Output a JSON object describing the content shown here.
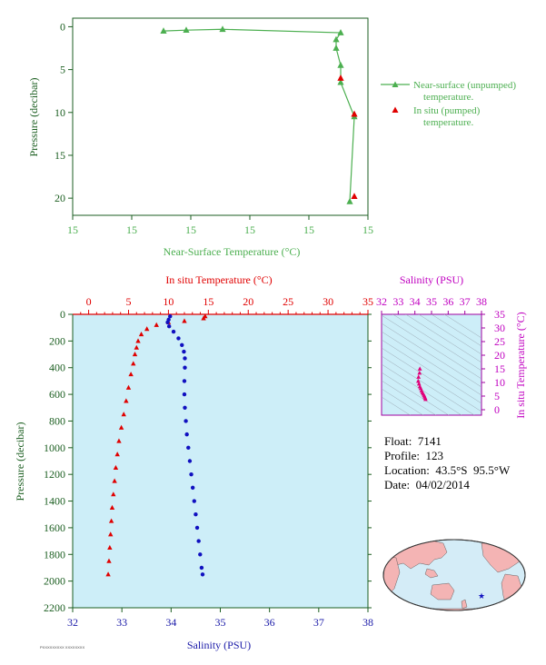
{
  "chart_data": [
    {
      "type": "line",
      "xlabel": "Near-Surface Temperature (°C)",
      "ylabel": "Pressure (decibar)",
      "xtick_labels": [
        "15",
        "15",
        "15",
        "15",
        "15",
        "15"
      ],
      "yticks": [
        0,
        5,
        10,
        15,
        20
      ],
      "ylim": [
        22,
        -1
      ],
      "legend_placement": "right",
      "series": [
        {
          "name": "Near-surface (unpumped) temperature.",
          "color": "#4caf50",
          "marker": "triangle",
          "points": [
            {
              "x": 14.7,
              "p": 0.5
            },
            {
              "x": 14.75,
              "p": 0.4
            },
            {
              "x": 14.83,
              "p": 0.3
            },
            {
              "x": 15.09,
              "p": 0.7
            },
            {
              "x": 15.08,
              "p": 1.5
            },
            {
              "x": 15.08,
              "p": 2.5
            },
            {
              "x": 15.09,
              "p": 4.5
            },
            {
              "x": 15.09,
              "p": 6.5
            },
            {
              "x": 15.12,
              "p": 10.5
            },
            {
              "x": 15.11,
              "p": 20.4
            }
          ]
        },
        {
          "name": "In situ (pumped) temperature.",
          "color": "#e00000",
          "marker": "triangle",
          "points": [
            {
              "x": 15.09,
              "p": 6.0
            },
            {
              "x": 15.12,
              "p": 10.2
            },
            {
              "x": 15.12,
              "p": 19.8
            }
          ]
        }
      ],
      "legend": [
        "Near-surface (unpumped)",
        "temperature.",
        "In situ (pumped)",
        "temperature."
      ]
    },
    {
      "type": "line",
      "ylabel": "Pressure (decibar)",
      "yticks": [
        0,
        200,
        400,
        600,
        800,
        1000,
        1200,
        1400,
        1600,
        1800,
        2000,
        2200
      ],
      "ylim": [
        2200,
        0
      ],
      "x_top": {
        "label": "In situ Temperature (°C)",
        "ticks": [
          0,
          5,
          10,
          15,
          20,
          25,
          30,
          35
        ],
        "range": [
          -2,
          35
        ],
        "color": "#e00000"
      },
      "x_bottom": {
        "label": "Salinity (PSU)",
        "ticks": [
          32,
          33,
          34,
          35,
          36,
          37,
          38
        ],
        "range": [
          32,
          38
        ],
        "color": "#1a1aa8"
      },
      "background": "#cdeef8",
      "series": [
        {
          "name": "temperature",
          "color": "#e00000",
          "marker": "triangle",
          "points": [
            {
              "x": 14.6,
              "p": 15
            },
            {
              "x": 14.4,
              "p": 30
            },
            {
              "x": 12.0,
              "p": 50
            },
            {
              "x": 10.0,
              "p": 60
            },
            {
              "x": 8.5,
              "p": 80
            },
            {
              "x": 7.3,
              "p": 110
            },
            {
              "x": 6.6,
              "p": 150
            },
            {
              "x": 6.2,
              "p": 200
            },
            {
              "x": 6.0,
              "p": 250
            },
            {
              "x": 5.8,
              "p": 300
            },
            {
              "x": 5.6,
              "p": 370
            },
            {
              "x": 5.3,
              "p": 450
            },
            {
              "x": 5.0,
              "p": 550
            },
            {
              "x": 4.7,
              "p": 650
            },
            {
              "x": 4.4,
              "p": 750
            },
            {
              "x": 4.1,
              "p": 850
            },
            {
              "x": 3.8,
              "p": 950
            },
            {
              "x": 3.6,
              "p": 1050
            },
            {
              "x": 3.4,
              "p": 1150
            },
            {
              "x": 3.25,
              "p": 1250
            },
            {
              "x": 3.1,
              "p": 1350
            },
            {
              "x": 2.95,
              "p": 1450
            },
            {
              "x": 2.85,
              "p": 1550
            },
            {
              "x": 2.75,
              "p": 1650
            },
            {
              "x": 2.65,
              "p": 1750
            },
            {
              "x": 2.55,
              "p": 1850
            },
            {
              "x": 2.45,
              "p": 1950
            }
          ]
        },
        {
          "name": "salinity",
          "color": "#1010c0",
          "marker": "circle",
          "points": [
            {
              "x": 33.98,
              "p": 15
            },
            {
              "x": 33.95,
              "p": 40
            },
            {
              "x": 33.93,
              "p": 60
            },
            {
              "x": 33.96,
              "p": 90
            },
            {
              "x": 34.05,
              "p": 130
            },
            {
              "x": 34.15,
              "p": 180
            },
            {
              "x": 34.22,
              "p": 230
            },
            {
              "x": 34.26,
              "p": 280
            },
            {
              "x": 34.28,
              "p": 330
            },
            {
              "x": 34.28,
              "p": 400
            },
            {
              "x": 34.27,
              "p": 500
            },
            {
              "x": 34.27,
              "p": 600
            },
            {
              "x": 34.28,
              "p": 700
            },
            {
              "x": 34.3,
              "p": 800
            },
            {
              "x": 34.32,
              "p": 900
            },
            {
              "x": 34.35,
              "p": 1000
            },
            {
              "x": 34.38,
              "p": 1100
            },
            {
              "x": 34.41,
              "p": 1200
            },
            {
              "x": 34.44,
              "p": 1300
            },
            {
              "x": 34.47,
              "p": 1400
            },
            {
              "x": 34.5,
              "p": 1500
            },
            {
              "x": 34.53,
              "p": 1600
            },
            {
              "x": 34.56,
              "p": 1700
            },
            {
              "x": 34.59,
              "p": 1800
            },
            {
              "x": 34.62,
              "p": 1900
            },
            {
              "x": 34.64,
              "p": 1950
            }
          ]
        }
      ]
    },
    {
      "type": "scatter",
      "title": "Salinity (PSU)",
      "ylabel": "In situ Temperature (°C)",
      "xticks": [
        32,
        33,
        34,
        35,
        36,
        37,
        38
      ],
      "yticks": [
        0,
        5,
        10,
        15,
        20,
        25,
        30,
        35
      ],
      "xlim": [
        32,
        38
      ],
      "ylim": [
        -2,
        35
      ],
      "color": "#e0007a",
      "points": [
        {
          "s": 34.3,
          "t": 15.0
        },
        {
          "s": 34.28,
          "t": 13.5
        },
        {
          "s": 34.22,
          "t": 12.0
        },
        {
          "s": 34.2,
          "t": 10.5
        },
        {
          "s": 34.25,
          "t": 9.5
        },
        {
          "s": 34.3,
          "t": 8.5
        },
        {
          "s": 34.35,
          "t": 7.8
        },
        {
          "s": 34.4,
          "t": 7.0
        },
        {
          "s": 34.45,
          "t": 6.3
        },
        {
          "s": 34.5,
          "t": 5.8
        },
        {
          "s": 34.55,
          "t": 5.3
        },
        {
          "s": 34.58,
          "t": 4.8
        },
        {
          "s": 34.62,
          "t": 4.3
        },
        {
          "s": 34.64,
          "t": 3.8
        }
      ]
    }
  ],
  "info": {
    "float": "Float:  7141",
    "profile": "Profile:  123",
    "location": "Location:  43.5°S  95.5°W",
    "date": "Date:  04/02/2014"
  },
  "footer_code": "PXXXXXXXXX XXXXXXXX"
}
